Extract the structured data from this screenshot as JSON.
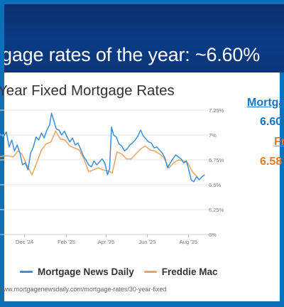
{
  "slide": {
    "headline": "gage rates of the year: ~6.60%",
    "source": "www.mortgagenewsdaily.com/mortgage-rates/30-year-fixed"
  },
  "side_panel": {
    "series_a_label": "Mortga",
    "series_a_value": "6.60",
    "series_b_label": "Fr",
    "series_b_value": "6.58"
  },
  "colors": {
    "frame": "#0d6fb8",
    "series_a": "#3b8fd9",
    "series_b": "#f0a35e",
    "side_a": "#1a73c9",
    "side_b": "#e9792e"
  },
  "chart_data": {
    "type": "line",
    "title": "Year Fixed Mortgage Rates",
    "x_ticks": [
      "Dec '24",
      "Feb '25",
      "Apr '25",
      "Jun '25",
      "Aug '25"
    ],
    "y_ticks": [
      "7.25%",
      "7%",
      "6.75%",
      "6.5%",
      "6.25%",
      "6%"
    ],
    "ylim": [
      6.0,
      7.25
    ],
    "y_tick_values": [
      7.25,
      7.0,
      6.75,
      6.5,
      6.25,
      6.0
    ],
    "x_tick_dates": [
      "2024-12-01",
      "2025-02-01",
      "2025-04-01",
      "2025-06-01",
      "2025-08-01"
    ],
    "grid": true,
    "legend_position": "bottom",
    "series": [
      {
        "name": "Mortgage News Daily",
        "color": "#3b8fd9",
        "points": [
          [
            "2024-10-15",
            7.05
          ],
          [
            "2024-10-20",
            6.92
          ],
          [
            "2024-10-25",
            7.02
          ],
          [
            "2024-10-30",
            6.98
          ],
          [
            "2024-11-04",
            7.03
          ],
          [
            "2024-11-08",
            6.88
          ],
          [
            "2024-11-12",
            6.95
          ],
          [
            "2024-11-16",
            6.84
          ],
          [
            "2024-11-20",
            6.9
          ],
          [
            "2024-11-24",
            6.82
          ],
          [
            "2024-11-28",
            6.7
          ],
          [
            "2024-12-02",
            6.72
          ],
          [
            "2024-12-06",
            6.65
          ],
          [
            "2024-12-10",
            6.82
          ],
          [
            "2024-12-14",
            6.88
          ],
          [
            "2024-12-18",
            6.98
          ],
          [
            "2024-12-22",
            6.95
          ],
          [
            "2024-12-26",
            7.02
          ],
          [
            "2024-12-30",
            6.97
          ],
          [
            "2025-01-03",
            7.05
          ],
          [
            "2025-01-07",
            7.1
          ],
          [
            "2025-01-10",
            7.22
          ],
          [
            "2025-01-13",
            7.15
          ],
          [
            "2025-01-17",
            7.06
          ],
          [
            "2025-01-21",
            7.05
          ],
          [
            "2025-01-25",
            7.0
          ],
          [
            "2025-01-29",
            7.04
          ],
          [
            "2025-02-02",
            6.98
          ],
          [
            "2025-02-06",
            6.93
          ],
          [
            "2025-02-10",
            6.97
          ],
          [
            "2025-02-14",
            6.9
          ],
          [
            "2025-02-18",
            6.92
          ],
          [
            "2025-02-22",
            6.86
          ],
          [
            "2025-02-26",
            6.79
          ],
          [
            "2025-03-02",
            6.75
          ],
          [
            "2025-03-06",
            6.7
          ],
          [
            "2025-03-10",
            6.68
          ],
          [
            "2025-03-14",
            6.74
          ],
          [
            "2025-03-18",
            6.7
          ],
          [
            "2025-03-22",
            6.73
          ],
          [
            "2025-03-26",
            6.76
          ],
          [
            "2025-03-30",
            6.72
          ],
          [
            "2025-04-03",
            6.6
          ],
          [
            "2025-04-06",
            6.66
          ],
          [
            "2025-04-09",
            7.08
          ],
          [
            "2025-04-12",
            7.0
          ],
          [
            "2025-04-16",
            6.98
          ],
          [
            "2025-04-20",
            6.91
          ],
          [
            "2025-04-24",
            6.89
          ],
          [
            "2025-04-28",
            6.84
          ],
          [
            "2025-05-02",
            6.86
          ],
          [
            "2025-05-06",
            6.9
          ],
          [
            "2025-05-10",
            6.92
          ],
          [
            "2025-05-14",
            6.95
          ],
          [
            "2025-05-18",
            6.99
          ],
          [
            "2025-05-22",
            7.05
          ],
          [
            "2025-05-26",
            6.99
          ],
          [
            "2025-05-30",
            6.96
          ],
          [
            "2025-06-03",
            6.93
          ],
          [
            "2025-06-07",
            6.92
          ],
          [
            "2025-06-11",
            6.87
          ],
          [
            "2025-06-15",
            6.88
          ],
          [
            "2025-06-19",
            6.85
          ],
          [
            "2025-06-23",
            6.82
          ],
          [
            "2025-06-27",
            6.77
          ],
          [
            "2025-07-01",
            6.67
          ],
          [
            "2025-07-05",
            6.72
          ],
          [
            "2025-07-09",
            6.76
          ],
          [
            "2025-07-13",
            6.8
          ],
          [
            "2025-07-17",
            6.78
          ],
          [
            "2025-07-21",
            6.76
          ],
          [
            "2025-07-25",
            6.72
          ],
          [
            "2025-07-29",
            6.74
          ],
          [
            "2025-08-02",
            6.64
          ],
          [
            "2025-08-05",
            6.55
          ],
          [
            "2025-08-09",
            6.53
          ],
          [
            "2025-08-13",
            6.58
          ],
          [
            "2025-08-17",
            6.55
          ],
          [
            "2025-08-21",
            6.58
          ],
          [
            "2025-08-25",
            6.6
          ]
        ]
      },
      {
        "name": "Freddie Mac",
        "color": "#f0a35e",
        "points": [
          [
            "2024-10-15",
            6.72
          ],
          [
            "2024-10-24",
            6.78
          ],
          [
            "2024-10-31",
            6.79
          ],
          [
            "2024-11-07",
            6.79
          ],
          [
            "2024-11-14",
            6.78
          ],
          [
            "2024-11-21",
            6.84
          ],
          [
            "2024-11-27",
            6.81
          ],
          [
            "2024-12-05",
            6.69
          ],
          [
            "2024-12-12",
            6.6
          ],
          [
            "2024-12-19",
            6.72
          ],
          [
            "2024-12-26",
            6.85
          ],
          [
            "2025-01-02",
            6.91
          ],
          [
            "2025-01-09",
            6.93
          ],
          [
            "2025-01-16",
            7.04
          ],
          [
            "2025-01-23",
            6.96
          ],
          [
            "2025-01-30",
            6.95
          ],
          [
            "2025-02-06",
            6.89
          ],
          [
            "2025-02-13",
            6.87
          ],
          [
            "2025-02-20",
            6.85
          ],
          [
            "2025-02-27",
            6.76
          ],
          [
            "2025-03-06",
            6.63
          ],
          [
            "2025-03-13",
            6.65
          ],
          [
            "2025-03-20",
            6.67
          ],
          [
            "2025-03-27",
            6.65
          ],
          [
            "2025-04-03",
            6.64
          ],
          [
            "2025-04-10",
            6.62
          ],
          [
            "2025-04-17",
            6.83
          ],
          [
            "2025-04-24",
            6.81
          ],
          [
            "2025-05-01",
            6.76
          ],
          [
            "2025-05-08",
            6.76
          ],
          [
            "2025-05-15",
            6.81
          ],
          [
            "2025-05-22",
            6.86
          ],
          [
            "2025-05-29",
            6.89
          ],
          [
            "2025-06-05",
            6.85
          ],
          [
            "2025-06-12",
            6.84
          ],
          [
            "2025-06-19",
            6.81
          ],
          [
            "2025-06-26",
            6.77
          ],
          [
            "2025-07-03",
            6.67
          ],
          [
            "2025-07-10",
            6.72
          ],
          [
            "2025-07-17",
            6.75
          ],
          [
            "2025-07-24",
            6.74
          ],
          [
            "2025-07-31",
            6.72
          ],
          [
            "2025-08-07",
            6.63
          ],
          [
            "2025-08-14",
            6.58
          ]
        ]
      }
    ]
  }
}
